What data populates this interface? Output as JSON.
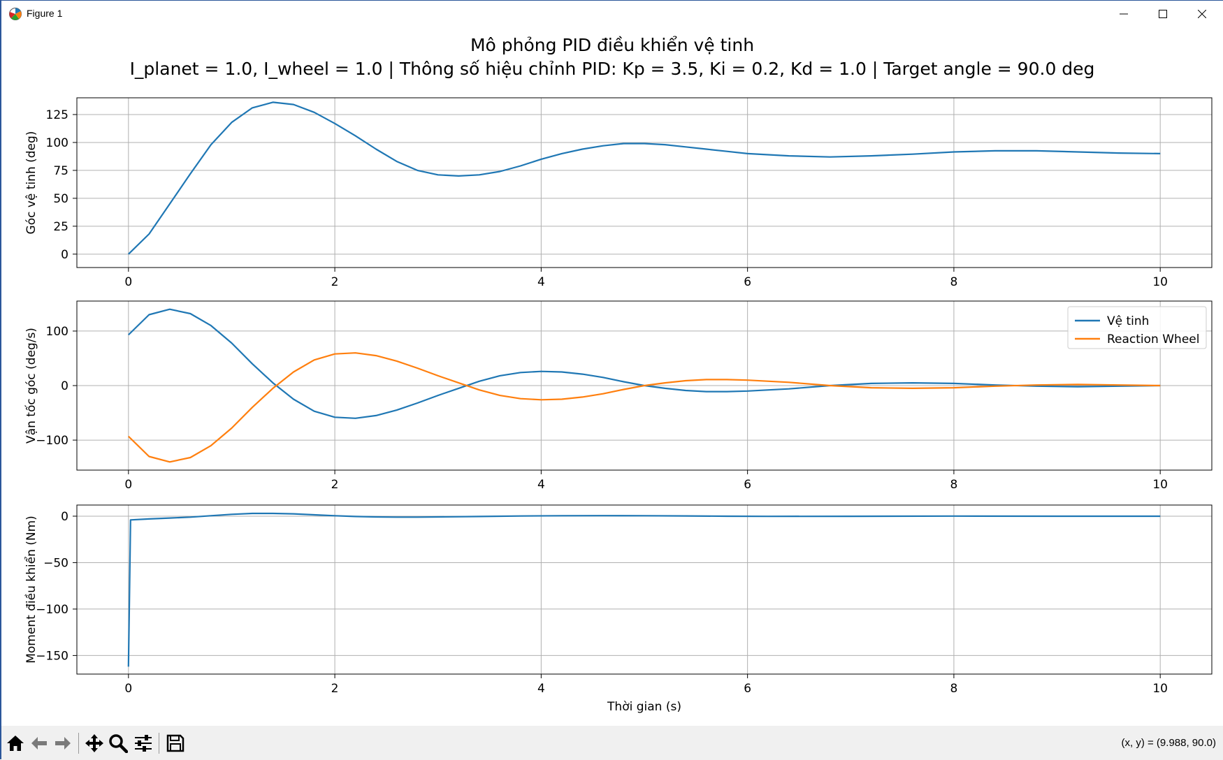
{
  "window": {
    "title": "Figure 1",
    "icon": "matplotlib-icon",
    "controls": [
      "minimize-icon",
      "maximize-icon",
      "close-icon"
    ]
  },
  "figure": {
    "title_line1": "Mô phỏng PID điều khiển vệ tinh",
    "title_line2": "I_planet = 1.0, I_wheel = 1.0  |  Thông số hiệu chỉnh PID: Kp = 3.5, Ki = 0.2, Kd = 1.0  |  Target angle = 90.0 deg"
  },
  "chart_data": [
    {
      "type": "line",
      "ylabel": "Góc vệ tinh (deg)",
      "xlabel": "",
      "xlim": [
        -0.5,
        10.5
      ],
      "ylim": [
        -12,
        140
      ],
      "xticks": [
        0,
        2,
        4,
        6,
        8,
        10
      ],
      "yticks": [
        0,
        25,
        50,
        75,
        100,
        125
      ],
      "grid": true,
      "series": [
        {
          "name": "",
          "color": "#1f77b4",
          "x": [
            0,
            0.2,
            0.4,
            0.6,
            0.8,
            1.0,
            1.2,
            1.4,
            1.6,
            1.8,
            2.0,
            2.2,
            2.4,
            2.6,
            2.8,
            3.0,
            3.2,
            3.4,
            3.6,
            3.8,
            4.0,
            4.2,
            4.4,
            4.6,
            4.8,
            5.0,
            5.2,
            5.4,
            5.6,
            5.8,
            6.0,
            6.4,
            6.8,
            7.2,
            7.6,
            8.0,
            8.4,
            8.8,
            9.2,
            9.6,
            10.0
          ],
          "y": [
            0,
            18,
            45,
            72,
            98,
            118,
            131,
            136,
            134,
            127,
            117,
            106,
            94,
            83,
            75,
            71,
            70,
            71,
            74,
            79,
            85,
            90,
            94,
            97,
            99,
            99,
            98,
            96,
            94,
            92,
            90,
            88,
            87,
            88,
            89.5,
            91.5,
            92.5,
            92.5,
            91.5,
            90.5,
            90
          ]
        }
      ]
    },
    {
      "type": "line",
      "ylabel": "Vận tốc góc (deg/s)",
      "xlabel": "",
      "xlim": [
        -0.5,
        10.5
      ],
      "ylim": [
        -155,
        155
      ],
      "xticks": [
        0,
        2,
        4,
        6,
        8,
        10
      ],
      "yticks": [
        -100,
        0,
        100
      ],
      "grid": true,
      "legend": "top-right",
      "series": [
        {
          "name": "Vệ tinh",
          "color": "#1f77b4",
          "x": [
            0,
            0.2,
            0.4,
            0.6,
            0.8,
            1.0,
            1.2,
            1.4,
            1.6,
            1.8,
            2.0,
            2.2,
            2.4,
            2.6,
            2.8,
            3.0,
            3.2,
            3.4,
            3.6,
            3.8,
            4.0,
            4.2,
            4.4,
            4.6,
            4.8,
            5.0,
            5.2,
            5.4,
            5.6,
            5.8,
            6.0,
            6.4,
            6.8,
            7.2,
            7.6,
            8.0,
            8.4,
            8.8,
            9.2,
            9.6,
            10.0
          ],
          "y": [
            93,
            130,
            140,
            132,
            110,
            78,
            40,
            5,
            -25,
            -47,
            -58,
            -60,
            -55,
            -45,
            -32,
            -18,
            -5,
            8,
            18,
            24,
            26,
            25,
            21,
            15,
            7,
            0,
            -5,
            -9,
            -11,
            -11,
            -10,
            -6,
            0,
            4,
            5,
            4,
            1,
            -1,
            -2,
            -1,
            0
          ]
        },
        {
          "name": "Reaction Wheel",
          "color": "#ff7f0e",
          "x": [
            0,
            0.2,
            0.4,
            0.6,
            0.8,
            1.0,
            1.2,
            1.4,
            1.6,
            1.8,
            2.0,
            2.2,
            2.4,
            2.6,
            2.8,
            3.0,
            3.2,
            3.4,
            3.6,
            3.8,
            4.0,
            4.2,
            4.4,
            4.6,
            4.8,
            5.0,
            5.2,
            5.4,
            5.6,
            5.8,
            6.0,
            6.4,
            6.8,
            7.2,
            7.6,
            8.0,
            8.4,
            8.8,
            9.2,
            9.6,
            10.0
          ],
          "y": [
            -93,
            -130,
            -140,
            -132,
            -110,
            -78,
            -40,
            -5,
            25,
            47,
            58,
            60,
            55,
            45,
            32,
            18,
            5,
            -8,
            -18,
            -24,
            -26,
            -25,
            -21,
            -15,
            -7,
            0,
            5,
            9,
            11,
            11,
            10,
            6,
            0,
            -4,
            -5,
            -4,
            -1,
            1,
            2,
            1,
            0
          ]
        }
      ]
    },
    {
      "type": "line",
      "ylabel": "Moment điều khiển (Nm)",
      "xlabel": "Thời gian (s)",
      "xlim": [
        -0.5,
        10.5
      ],
      "ylim": [
        -170,
        12
      ],
      "xticks": [
        0,
        2,
        4,
        6,
        8,
        10
      ],
      "yticks": [
        -150,
        -100,
        -50,
        0
      ],
      "grid": true,
      "series": [
        {
          "name": "",
          "color": "#1f77b4",
          "x": [
            0,
            0.02,
            0.2,
            0.4,
            0.6,
            0.8,
            1.0,
            1.2,
            1.4,
            1.6,
            1.8,
            2.0,
            2.2,
            2.4,
            2.6,
            2.8,
            3.0,
            3.4,
            3.8,
            4.2,
            4.6,
            5.0,
            5.4,
            5.8,
            6.2,
            7.0,
            8.0,
            9.0,
            10.0
          ],
          "y": [
            -162,
            -4,
            -3,
            -2,
            -1,
            0.5,
            2,
            3,
            3,
            2.5,
            1.5,
            0.5,
            -0.3,
            -0.8,
            -1,
            -1,
            -0.8,
            -0.3,
            0.2,
            0.5,
            0.6,
            0.5,
            0.3,
            0,
            -0.2,
            -0.1,
            0.1,
            0,
            0
          ]
        }
      ]
    }
  ],
  "toolbar": {
    "buttons": [
      "home-icon",
      "back-icon",
      "forward-icon",
      "pan-icon",
      "zoom-icon",
      "configure-icon",
      "save-icon"
    ],
    "coord_readout": "(x, y) = (9.988, 90.0)"
  }
}
